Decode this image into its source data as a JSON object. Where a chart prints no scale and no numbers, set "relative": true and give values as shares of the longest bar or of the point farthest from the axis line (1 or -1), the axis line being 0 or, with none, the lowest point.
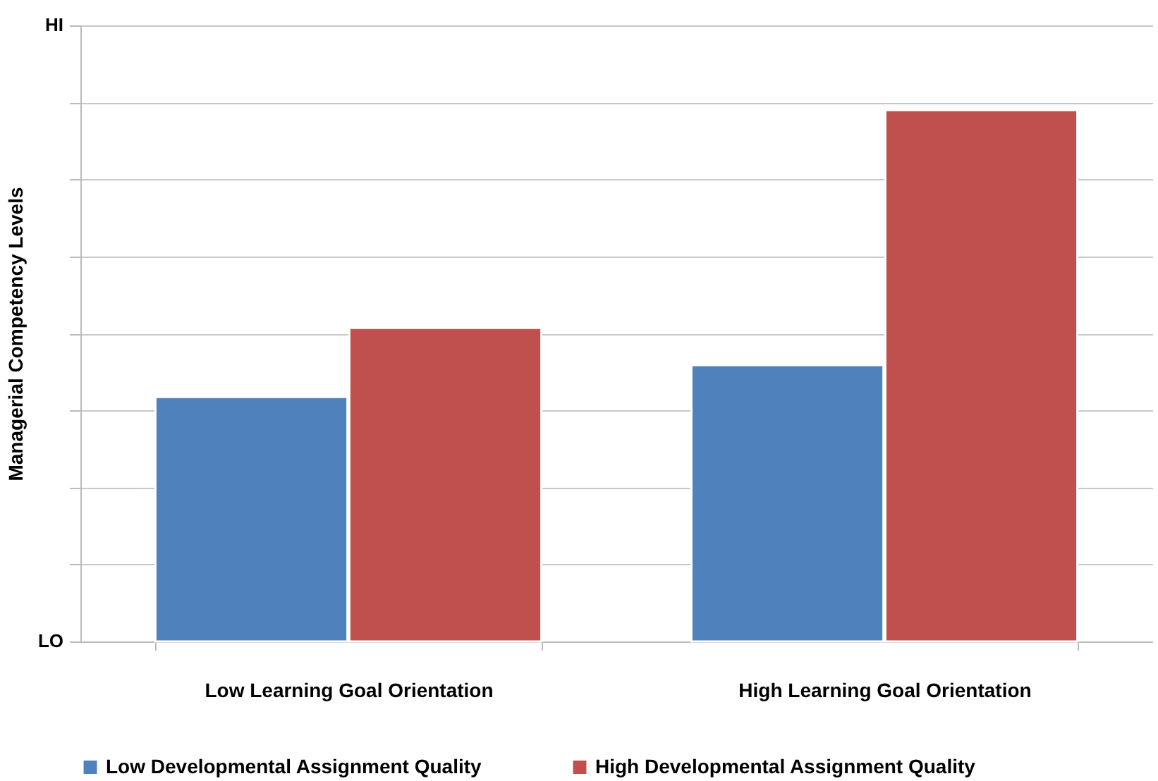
{
  "chart_data": {
    "type": "bar",
    "ylabel": "Managerial Competency Levels",
    "relative": true,
    "categories": [
      "Low Learning Goal Orientation",
      "High Learning Goal Orientation"
    ],
    "series": [
      {
        "name": "Low Developmental Assignment Quality",
        "color": "#4f81bd",
        "values": [
          0.46,
          0.52
        ]
      },
      {
        "name": "High Developmental Assignment Quality",
        "color": "#c0504d",
        "values": [
          0.59,
          1
        ]
      }
    ],
    "annotations": [
      "HI",
      "LO"
    ],
    "grid": true,
    "legend": "bottom"
  }
}
